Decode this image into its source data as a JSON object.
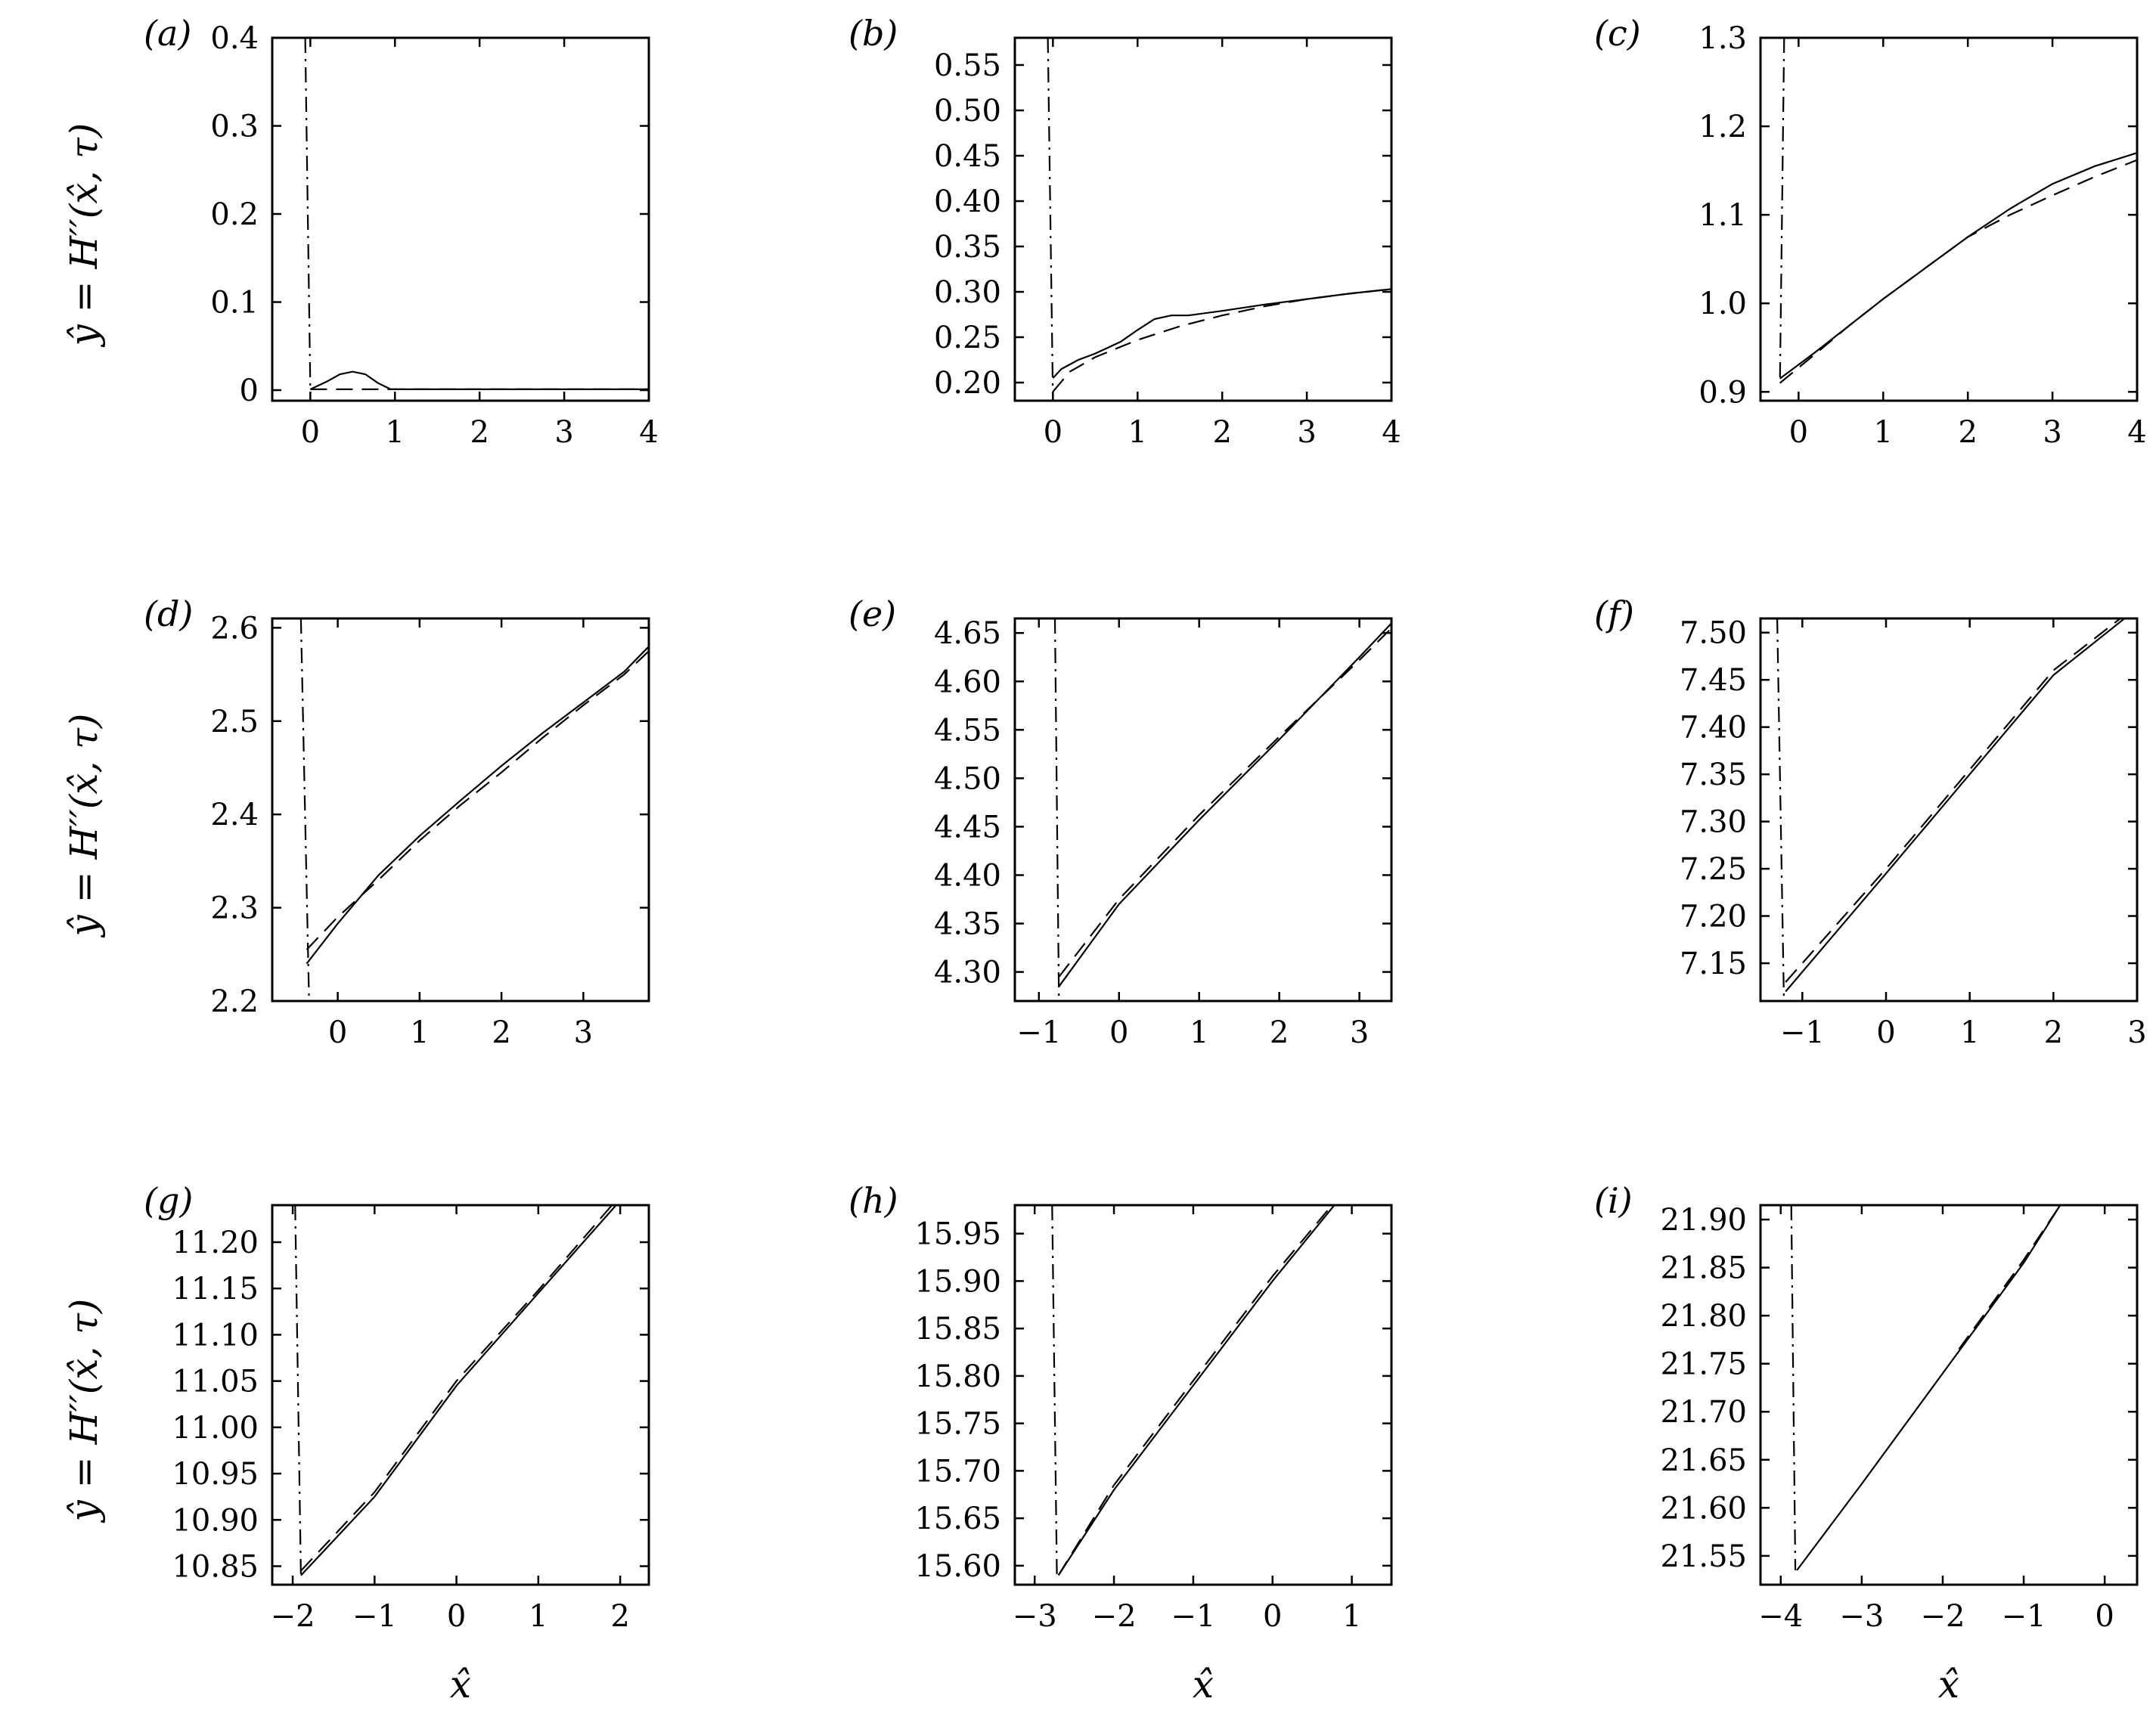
{
  "figure": {
    "ylabel": "ŷ = H′′(x̂, τ)",
    "xlabel": "x̂"
  },
  "chart_data": [
    {
      "panel": "(a)",
      "type": "line",
      "xlim": [
        -0.45,
        4
      ],
      "ylim": [
        -0.012,
        0.4
      ],
      "xticks": [
        "0",
        "1",
        "2",
        "3",
        "4"
      ],
      "xtick_values": [
        0,
        1,
        2,
        3,
        4
      ],
      "yticks": [
        "0",
        "0.1",
        "0.2",
        "0.3",
        "0.4"
      ],
      "ytick_values": [
        0,
        0.1,
        0.2,
        0.3,
        0.4
      ],
      "series": [
        {
          "style": "solid",
          "x": [
            0,
            0.2,
            0.35,
            0.5,
            0.65,
            0.8,
            0.95,
            4
          ],
          "y": [
            0.001,
            0.01,
            0.018,
            0.021,
            0.018,
            0.008,
            0.001,
            0.001
          ]
        },
        {
          "style": "dashed",
          "x": [
            0,
            1,
            4
          ],
          "y": [
            0.001,
            0.001,
            0.001
          ]
        },
        {
          "style": "dashdot",
          "x": [
            -0.06,
            0.0
          ],
          "y": [
            0.4,
            0.0
          ]
        }
      ]
    },
    {
      "panel": "(b)",
      "type": "line",
      "xlim": [
        -0.45,
        4
      ],
      "ylim": [
        0.18,
        0.58
      ],
      "xticks": [
        "0",
        "1",
        "2",
        "3",
        "4"
      ],
      "xtick_values": [
        0,
        1,
        2,
        3,
        4
      ],
      "yticks": [
        "0.20",
        "0.25",
        "0.30",
        "0.35",
        "0.40",
        "0.45",
        "0.50",
        "0.55"
      ],
      "ytick_values": [
        0.2,
        0.25,
        0.3,
        0.35,
        0.4,
        0.45,
        0.5,
        0.55
      ],
      "series": [
        {
          "style": "solid",
          "x": [
            0,
            0.1,
            0.3,
            0.5,
            0.8,
            1.0,
            1.2,
            1.4,
            1.6,
            2.0,
            2.5,
            3.0,
            3.5,
            4.0
          ],
          "y": [
            0.205,
            0.215,
            0.225,
            0.232,
            0.245,
            0.258,
            0.27,
            0.274,
            0.274,
            0.279,
            0.286,
            0.292,
            0.298,
            0.303
          ]
        },
        {
          "style": "dashed",
          "x": [
            0,
            0.2,
            0.5,
            1.0,
            1.5,
            2.0,
            2.5,
            3.0,
            3.5,
            4.0
          ],
          "y": [
            0.19,
            0.212,
            0.228,
            0.247,
            0.262,
            0.274,
            0.284,
            0.292,
            0.298,
            0.303
          ]
        },
        {
          "style": "dashdot",
          "x": [
            -0.06,
            0.0
          ],
          "y": [
            0.58,
            0.18
          ]
        }
      ]
    },
    {
      "panel": "(c)",
      "type": "line",
      "xlim": [
        -0.45,
        4
      ],
      "ylim": [
        0.89,
        1.3
      ],
      "xticks": [
        "0",
        "1",
        "2",
        "3",
        "4"
      ],
      "xtick_values": [
        0,
        1,
        2,
        3,
        4
      ],
      "yticks": [
        "0.9",
        "1.0",
        "1.1",
        "1.2",
        "1.3"
      ],
      "ytick_values": [
        0.9,
        1.0,
        1.1,
        1.2,
        1.3
      ],
      "series": [
        {
          "style": "solid",
          "x": [
            -0.22,
            0.2,
            0.6,
            1.0,
            1.5,
            2.0,
            2.5,
            3.0,
            3.5,
            4.0
          ],
          "y": [
            0.915,
            0.945,
            0.975,
            1.005,
            1.04,
            1.075,
            1.107,
            1.135,
            1.155,
            1.17
          ]
        },
        {
          "style": "dashed",
          "x": [
            -0.22,
            0.2,
            0.6,
            1.0,
            1.5,
            2.0,
            2.5,
            3.0,
            3.5,
            4.0
          ],
          "y": [
            0.91,
            0.943,
            0.975,
            1.005,
            1.04,
            1.075,
            1.1,
            1.122,
            1.143,
            1.162
          ]
        },
        {
          "style": "dashdot",
          "x": [
            -0.17,
            -0.22
          ],
          "y": [
            1.3,
            0.91
          ]
        }
      ]
    },
    {
      "panel": "(d)",
      "type": "line",
      "xlim": [
        -0.8,
        3.8
      ],
      "ylim": [
        2.2,
        2.61
      ],
      "xticks": [
        "0",
        "1",
        "2",
        "3"
      ],
      "xtick_values": [
        0,
        1,
        2,
        3
      ],
      "yticks": [
        "2.2",
        "2.3",
        "2.4",
        "2.5",
        "2.6"
      ],
      "ytick_values": [
        2.2,
        2.3,
        2.4,
        2.5,
        2.6
      ],
      "series": [
        {
          "style": "solid",
          "x": [
            -0.38,
            0,
            0.5,
            1.0,
            1.5,
            2.0,
            2.5,
            3.0,
            3.5,
            3.8
          ],
          "y": [
            2.24,
            2.283,
            2.335,
            2.377,
            2.415,
            2.452,
            2.487,
            2.52,
            2.553,
            2.58
          ]
        },
        {
          "style": "dashed",
          "x": [
            -0.38,
            0,
            0.5,
            1.0,
            1.5,
            2.0,
            2.5,
            3.0,
            3.5,
            3.8
          ],
          "y": [
            2.255,
            2.29,
            2.33,
            2.372,
            2.41,
            2.445,
            2.482,
            2.517,
            2.55,
            2.575
          ]
        },
        {
          "style": "dashdot",
          "x": [
            -0.45,
            -0.35
          ],
          "y": [
            2.61,
            2.2
          ]
        }
      ]
    },
    {
      "panel": "(e)",
      "type": "line",
      "xlim": [
        -1.3,
        3.4
      ],
      "ylim": [
        4.27,
        4.665
      ],
      "xticks": [
        "−1",
        "0",
        "1",
        "2",
        "3"
      ],
      "xtick_values": [
        -1,
        0,
        1,
        2,
        3
      ],
      "yticks": [
        "4.30",
        "4.35",
        "4.40",
        "4.45",
        "4.50",
        "4.55",
        "4.60",
        "4.65"
      ],
      "ytick_values": [
        4.3,
        4.35,
        4.4,
        4.45,
        4.5,
        4.55,
        4.6,
        4.65
      ],
      "series": [
        {
          "style": "solid",
          "x": [
            -0.75,
            0,
            1.0,
            2.0,
            3.0,
            3.4
          ],
          "y": [
            4.285,
            4.37,
            4.457,
            4.54,
            4.625,
            4.66
          ]
        },
        {
          "style": "dashed",
          "x": [
            -0.75,
            0,
            1.0,
            2.0,
            3.0,
            3.4
          ],
          "y": [
            4.295,
            4.375,
            4.462,
            4.543,
            4.622,
            4.655
          ]
        },
        {
          "style": "dashdot",
          "x": [
            -0.8,
            -0.75
          ],
          "y": [
            4.665,
            4.27
          ]
        }
      ]
    },
    {
      "panel": "(f)",
      "type": "line",
      "xlim": [
        -1.5,
        3.0
      ],
      "ylim": [
        7.11,
        7.515
      ],
      "xticks": [
        "−1",
        "0",
        "1",
        "2",
        "3"
      ],
      "xtick_values": [
        -1,
        0,
        1,
        2,
        3
      ],
      "yticks": [
        "7.15",
        "7.20",
        "7.25",
        "7.30",
        "7.35",
        "7.40",
        "7.45",
        "7.50"
      ],
      "ytick_values": [
        7.15,
        7.2,
        7.25,
        7.3,
        7.35,
        7.4,
        7.45,
        7.5
      ],
      "series": [
        {
          "style": "solid",
          "x": [
            -1.2,
            0,
            1.0,
            2.0,
            2.85
          ],
          "y": [
            7.12,
            7.245,
            7.35,
            7.455,
            7.515
          ]
        },
        {
          "style": "dashed",
          "x": [
            -1.2,
            0,
            1.0,
            2.0,
            2.8
          ],
          "y": [
            7.13,
            7.25,
            7.355,
            7.46,
            7.515
          ]
        },
        {
          "style": "dashdot",
          "x": [
            -1.3,
            -1.22
          ],
          "y": [
            7.515,
            7.11
          ]
        }
      ]
    },
    {
      "panel": "(g)",
      "type": "line",
      "xlim": [
        -2.25,
        2.35
      ],
      "ylim": [
        10.83,
        11.24
      ],
      "xticks": [
        "−2",
        "−1",
        "0",
        "1",
        "2"
      ],
      "xtick_values": [
        -2,
        -1,
        0,
        1,
        2
      ],
      "yticks": [
        "10.85",
        "10.90",
        "10.95",
        "11.00",
        "11.05",
        "11.10",
        "11.15",
        "11.20"
      ],
      "ytick_values": [
        10.85,
        10.9,
        10.95,
        11.0,
        11.05,
        11.1,
        11.15,
        11.2
      ],
      "series": [
        {
          "style": "solid",
          "x": [
            -1.9,
            -1.0,
            0,
            1.0,
            1.95
          ],
          "y": [
            10.84,
            10.925,
            11.045,
            11.145,
            11.24
          ]
        },
        {
          "style": "dashed",
          "x": [
            -1.9,
            -1.0,
            0,
            1.0,
            1.9
          ],
          "y": [
            10.845,
            10.93,
            11.05,
            11.148,
            11.24
          ]
        },
        {
          "style": "dashdot",
          "x": [
            -1.97,
            -1.9
          ],
          "y": [
            11.24,
            10.84
          ]
        }
      ]
    },
    {
      "panel": "(h)",
      "type": "line",
      "xlim": [
        -3.25,
        1.5
      ],
      "ylim": [
        15.58,
        15.98
      ],
      "xticks": [
        "−3",
        "−2",
        "−1",
        "0",
        "1"
      ],
      "xtick_values": [
        -3,
        -2,
        -1,
        0,
        1
      ],
      "yticks": [
        "15.60",
        "15.65",
        "15.70",
        "15.75",
        "15.80",
        "15.85",
        "15.90",
        "15.95"
      ],
      "ytick_values": [
        15.6,
        15.65,
        15.7,
        15.75,
        15.8,
        15.85,
        15.9,
        15.95
      ],
      "series": [
        {
          "style": "solid",
          "x": [
            -2.7,
            -2.0,
            -1.0,
            0,
            0.78
          ],
          "y": [
            15.59,
            15.68,
            15.79,
            15.9,
            15.98
          ]
        },
        {
          "style": "dashed",
          "x": [
            -2.7,
            -2.0,
            -1.0,
            0,
            0.75
          ],
          "y": [
            15.59,
            15.685,
            15.795,
            15.905,
            15.98
          ]
        },
        {
          "style": "dashdot",
          "x": [
            -2.78,
            -2.72
          ],
          "y": [
            15.98,
            15.59
          ]
        }
      ]
    },
    {
      "panel": "(i)",
      "type": "line",
      "xlim": [
        -4.25,
        0.4
      ],
      "ylim": [
        21.52,
        21.915
      ],
      "xticks": [
        "−4",
        "−3",
        "−2",
        "−1",
        "0"
      ],
      "xtick_values": [
        -4,
        -3,
        -2,
        -1,
        0
      ],
      "yticks": [
        "21.55",
        "21.60",
        "21.65",
        "21.70",
        "21.75",
        "21.80",
        "21.85",
        "21.90"
      ],
      "ytick_values": [
        21.55,
        21.6,
        21.65,
        21.7,
        21.75,
        21.8,
        21.85,
        21.9
      ],
      "series": [
        {
          "style": "solid",
          "x": [
            -3.8,
            -3.0,
            -2.0,
            -1.0,
            -0.55
          ],
          "y": [
            21.535,
            21.625,
            21.74,
            21.855,
            21.915
          ]
        },
        {
          "style": "dashed",
          "x": [
            -1.8,
            -1.0,
            -0.55
          ],
          "y": [
            21.765,
            21.858,
            21.915
          ]
        },
        {
          "style": "dashdot",
          "x": [
            -3.87,
            -3.82
          ],
          "y": [
            21.915,
            21.535
          ]
        }
      ]
    }
  ]
}
